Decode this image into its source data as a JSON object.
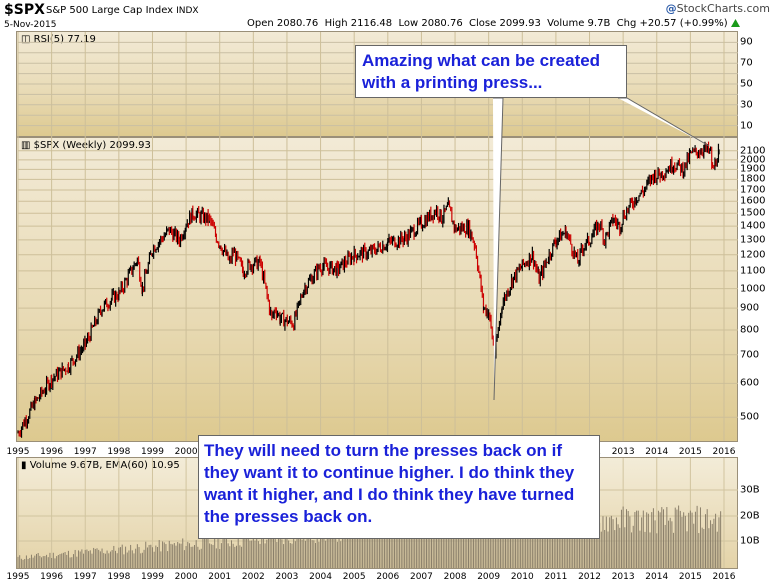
{
  "header": {
    "symbol": "$SPX",
    "name": "S&P 500 Large Cap Index",
    "exchange": "INDX",
    "date": "5-Nov-2015",
    "quote": "Open 2080.76  High 2116.48  Low 2080.76  Close 2099.93  Volume 9.7B  Chg +20.57 (+0.99%)",
    "quote_direction_icon": "up-triangle-icon",
    "logo": "StockCharts.com",
    "logo_mark": "@"
  },
  "panels": {
    "rsi_label": "RSI(5) 77.19",
    "price_label": "$SPX (Weekly) 2099.93",
    "volume_label": "Volume 9.67B, EMA(60) 10.95"
  },
  "annotations": {
    "top": "Amazing what can be created with a printing press...",
    "bottom": "They will need to turn the presses back on if they want it to continue higher. I do think they want it higher, and I do think they have turned the presses back on."
  },
  "colors": {
    "candle_up": "#000000",
    "candle_down": "#cc0000",
    "annotation_text": "#1a21d9"
  },
  "chart_data": [
    {
      "type": "line",
      "title": "RSI(5) 77.19",
      "y_ticks": [
        10,
        30,
        50,
        70,
        90
      ],
      "y_ticks_minor": [
        20,
        40,
        60,
        80
      ],
      "ylim": [
        0,
        100
      ]
    },
    {
      "type": "candlestick",
      "title": "$SPX (Weekly) 2099.93",
      "scale": "log",
      "ylim": [
        440,
        2250
      ],
      "y_ticks": [
        500,
        600,
        700,
        800,
        900,
        1000,
        1100,
        1200,
        1300,
        1400,
        1500,
        1600,
        1700,
        1800,
        1900,
        2000,
        2100
      ],
      "x_ticks": [
        "1995",
        "1996",
        "1997",
        "1998",
        "1999",
        "2000",
        "2001",
        "2002",
        "2003",
        "2004",
        "2005",
        "2006",
        "2007",
        "2008",
        "2009",
        "2010",
        "2011",
        "2012",
        "2013",
        "2014",
        "2015",
        "2016"
      ],
      "series": [
        {
          "x": [
            1995.0,
            1995.5,
            1996.0,
            1996.5,
            1997.0,
            1997.5,
            1997.8,
            1998.0,
            1998.55,
            1998.7,
            1999.0,
            1999.5,
            1999.8,
            2000.0,
            2000.2,
            2000.7,
            2000.9,
            2001.3,
            2001.4,
            2001.7,
            2001.9,
            2002.2,
            2002.55,
            2002.65,
            2002.8,
            2003.2,
            2003.5,
            2004.0,
            2004.5,
            2005.0,
            2005.5,
            2006.0,
            2006.5,
            2007.0,
            2007.45,
            2007.6,
            2007.8,
            2008.0,
            2008.4,
            2008.6,
            2008.85,
            2009.0,
            2009.18,
            2009.4,
            2009.7,
            2010.0,
            2010.3,
            2010.5,
            2010.8,
            2011.0,
            2011.3,
            2011.65,
            2011.8,
            2012.0,
            2012.3,
            2012.45,
            2012.7,
            2012.9,
            2013.0,
            2013.4,
            2013.6,
            2013.9,
            2014.1,
            2014.5,
            2014.8,
            2015.0,
            2015.4,
            2015.6,
            2015.66,
            2015.85
          ],
          "y": [
            460,
            540,
            615,
            660,
            740,
            900,
            950,
            970,
            1170,
            1000,
            1240,
            1370,
            1300,
            1420,
            1500,
            1450,
            1320,
            1150,
            1220,
            1100,
            1140,
            1150,
            850,
            900,
            850,
            830,
            1000,
            1130,
            1110,
            1200,
            1220,
            1280,
            1310,
            1420,
            1530,
            1460,
            1550,
            1380,
            1390,
            1260,
            900,
            880,
            700,
            920,
            1050,
            1130,
            1200,
            1050,
            1200,
            1300,
            1360,
            1150,
            1250,
            1300,
            1420,
            1300,
            1450,
            1400,
            1480,
            1640,
            1690,
            1840,
            1850,
            1960,
            1900,
            2060,
            2120,
            2080,
            1880,
            2099.93
          ]
        }
      ]
    },
    {
      "type": "bar",
      "title": "Volume 9.67B, EMA(60) 10.95",
      "y_ticks": [
        "10B",
        "20B",
        "30B"
      ],
      "x_ticks": [
        "1995",
        "1996",
        "1997",
        "1998",
        "1999",
        "2000",
        "2001",
        "2002",
        "2003",
        "2004",
        "2005",
        "2006",
        "2007",
        "2008",
        "2009",
        "2010",
        "2011",
        "2012",
        "2013",
        "2014",
        "2015",
        "2016"
      ]
    }
  ]
}
